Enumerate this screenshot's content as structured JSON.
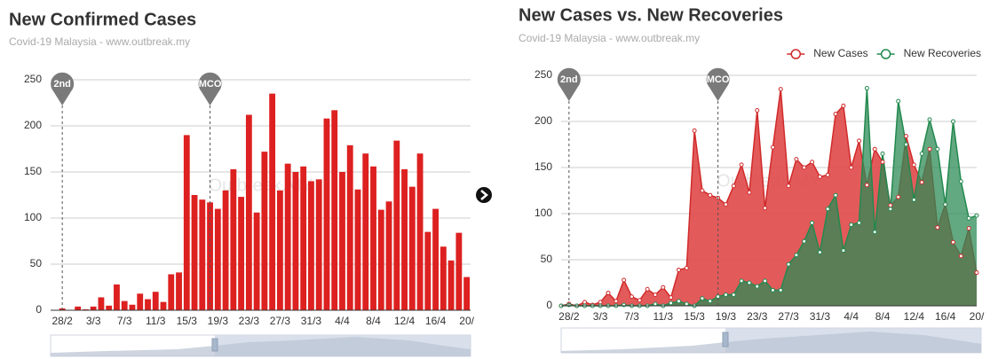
{
  "chart_data": [
    {
      "type": "bar",
      "title": "New Confirmed Cases",
      "subtitle": "Covid-19 Malaysia - www.outbreak.my",
      "watermark": "Outbreak.MY",
      "categories": [
        null,
        "28/2",
        null,
        null,
        null,
        "3/3",
        null,
        null,
        null,
        "7/3",
        null,
        null,
        null,
        "11/3",
        null,
        null,
        null,
        "15/3",
        null,
        null,
        null,
        "19/3",
        null,
        null,
        null,
        "23/3",
        null,
        null,
        null,
        "27/3",
        null,
        null,
        null,
        "31/3",
        null,
        null,
        null,
        "4/4",
        null,
        null,
        null,
        "8/4",
        null,
        null,
        null,
        "12/4",
        null,
        null,
        null,
        "16/4",
        null,
        null,
        null,
        "20/"
      ],
      "values": [
        0,
        2,
        0,
        4,
        1,
        4,
        14,
        5,
        28,
        10,
        6,
        18,
        12,
        20,
        9,
        39,
        41,
        190,
        125,
        120,
        117,
        110,
        130,
        153,
        123,
        212,
        106,
        172,
        235,
        130,
        159,
        150,
        156,
        140,
        142,
        208,
        217,
        150,
        179,
        131,
        170,
        156,
        109,
        118,
        184,
        153,
        134,
        170,
        85,
        110,
        69,
        54,
        84,
        36
      ],
      "color": "#dd2020",
      "ylim": [
        0,
        250
      ],
      "yticks": [
        0,
        50,
        100,
        150,
        200,
        250
      ],
      "grid": true,
      "annotations": [
        {
          "text": "2nd",
          "category_index": 1
        },
        {
          "text": "MCO",
          "category_index": 20
        }
      ]
    },
    {
      "type": "line",
      "area": true,
      "title": "New Cases vs. New Recoveries",
      "subtitle": "Covid-19 Malaysia - www.outbreak.my",
      "watermark": "Outbreak.MY",
      "categories": [
        null,
        "28/2",
        null,
        null,
        null,
        "3/3",
        null,
        null,
        null,
        "7/3",
        null,
        null,
        null,
        "11/3",
        null,
        null,
        null,
        "15/3",
        null,
        null,
        null,
        "19/3",
        null,
        null,
        null,
        "23/3",
        null,
        null,
        null,
        "27/3",
        null,
        null,
        null,
        "31/3",
        null,
        null,
        null,
        "4/4",
        null,
        null,
        null,
        "8/4",
        null,
        null,
        null,
        "12/4",
        null,
        null,
        null,
        "16/4",
        null,
        null,
        null,
        "20/"
      ],
      "series": [
        {
          "name": "New Cases",
          "color": "#d02b2b",
          "fill": "#e04848",
          "values": [
            0,
            2,
            0,
            4,
            1,
            4,
            14,
            5,
            28,
            10,
            6,
            18,
            12,
            20,
            9,
            39,
            41,
            190,
            125,
            120,
            117,
            110,
            130,
            153,
            123,
            212,
            106,
            172,
            235,
            130,
            159,
            150,
            156,
            140,
            142,
            208,
            217,
            150,
            179,
            131,
            170,
            156,
            109,
            118,
            184,
            153,
            134,
            170,
            85,
            110,
            69,
            54,
            84,
            36
          ]
        },
        {
          "name": "New Recoveries",
          "color": "#23894e",
          "fill": "#2e8b57",
          "values": [
            0,
            1,
            0,
            0,
            0,
            0,
            0,
            0,
            1,
            0,
            0,
            0,
            2,
            0,
            3,
            5,
            2,
            0,
            8,
            5,
            10,
            12,
            12,
            27,
            25,
            21,
            27,
            17,
            17,
            45,
            55,
            70,
            90,
            58,
            105,
            120,
            60,
            88,
            90,
            236,
            80,
            165,
            105,
            222,
            175,
            115,
            165,
            202,
            170,
            110,
            200,
            135,
            95,
            98
          ]
        }
      ],
      "ylim": [
        0,
        250
      ],
      "yticks": [
        0,
        50,
        100,
        150,
        200,
        250
      ],
      "grid": true,
      "legend": "top-right",
      "annotations": [
        {
          "text": "2nd",
          "category_index": 1
        },
        {
          "text": "MCO",
          "category_index": 20
        }
      ]
    }
  ]
}
